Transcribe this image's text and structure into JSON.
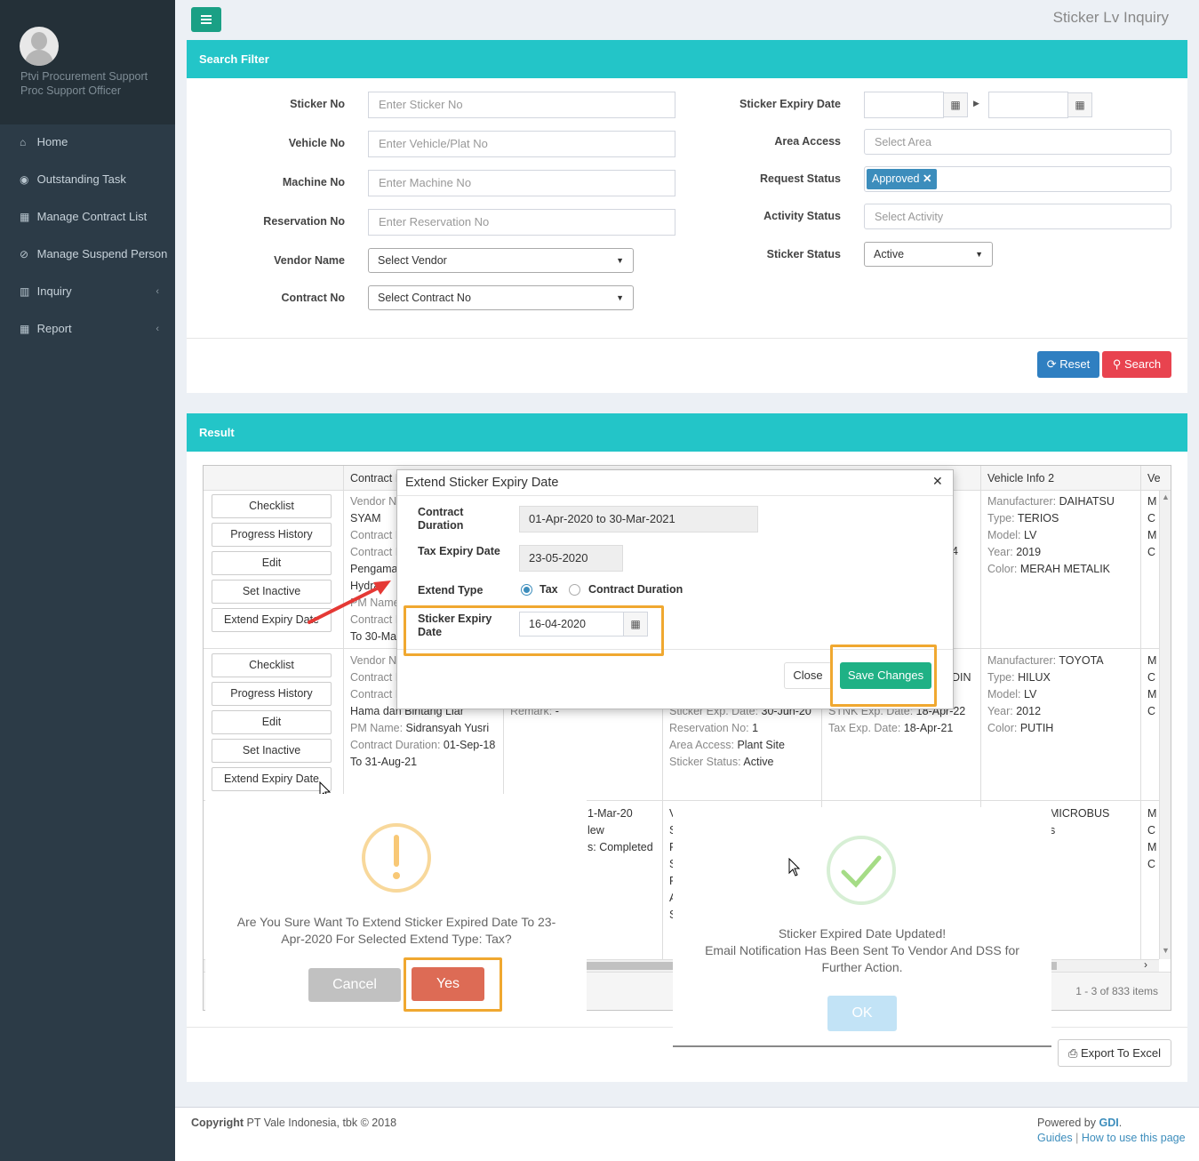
{
  "user": {
    "line1": "Ptvi Procurement Support",
    "line2": "Proc Support Officer"
  },
  "sidebar": {
    "items": [
      {
        "icon": "⌂",
        "label": "Home",
        "chev": ""
      },
      {
        "icon": "◉",
        "label": "Outstanding Task",
        "chev": ""
      },
      {
        "icon": "▦",
        "label": "Manage Contract List",
        "chev": ""
      },
      {
        "icon": "⊘",
        "label": "Manage Suspend Person",
        "chev": ""
      },
      {
        "icon": "▥",
        "label": "Inquiry",
        "chev": "‹"
      },
      {
        "icon": "▦",
        "label": "Report",
        "chev": "‹"
      }
    ]
  },
  "header": {
    "title": "Sticker Lv Inquiry"
  },
  "filter": {
    "title": "Search Filter",
    "sticker_no": {
      "label": "Sticker No",
      "placeholder": "Enter Sticker No"
    },
    "vehicle_no": {
      "label": "Vehicle No",
      "placeholder": "Enter Vehicle/Plat No"
    },
    "machine_no": {
      "label": "Machine No",
      "placeholder": "Enter Machine No"
    },
    "reservation_no": {
      "label": "Reservation No",
      "placeholder": "Enter Reservation No"
    },
    "vendor_name": {
      "label": "Vendor Name",
      "value": "Select Vendor"
    },
    "contract_no": {
      "label": "Contract No",
      "value": "Select Contract No"
    },
    "sticker_expiry": {
      "label": "Sticker Expiry Date"
    },
    "area_access": {
      "label": "Area Access",
      "placeholder": "Select Area"
    },
    "request_status": {
      "label": "Request Status",
      "tag": "Approved"
    },
    "activity_status": {
      "label": "Activity Status",
      "placeholder": "Select Activity"
    },
    "sticker_status": {
      "label": "Sticker Status",
      "value": "Active"
    },
    "reset_label": "Reset",
    "search_label": "Search"
  },
  "result": {
    "title": "Result",
    "columns": [
      "Contract I",
      "Vehicle Info 2",
      "Ve"
    ],
    "row_buttons": [
      "Checklist",
      "Progress History",
      "Edit",
      "Set Inactive",
      "Extend Expiry Date"
    ],
    "row1": {
      "c1": [
        "Vendor N",
        "SYAM",
        "Contract I",
        "Contract I",
        "Pengama",
        "Hydra",
        "PM Name",
        "Contract I",
        "To 30-Ma"
      ],
      "c4frag": "4",
      "veh2": [
        {
          "k": "Manufacturer:",
          "v": "DAIHATSU"
        },
        {
          "k": "Type:",
          "v": "TERIOS"
        },
        {
          "k": "Model:",
          "v": "LV"
        },
        {
          "k": "Year:",
          "v": "2019"
        },
        {
          "k": "Color:",
          "v": "MERAH METALIK"
        }
      ],
      "c6": [
        "M",
        "C",
        "M",
        "C"
      ]
    },
    "row2": {
      "c1a": [
        "Vendor N",
        "Contract I",
        "Contract I"
      ],
      "c1b": [
        {
          "k": "",
          "v": "Hama dan Bintang Liar"
        },
        {
          "k": "PM Name:",
          "v": "Sidransyah Yusri"
        },
        {
          "k": "Contract Duration:",
          "v": "01-Sep-18"
        },
        {
          "k": "",
          "v": "To 31-Aug-21"
        }
      ],
      "c2": {
        "k": "Remark:",
        "v": "-"
      },
      "c3": [
        {
          "k": "Sticker Exp. Date:",
          "v": "30-Jun-20"
        },
        {
          "k": "Reservation No:",
          "v": "1"
        },
        {
          "k": "Area Access:",
          "v": "Plant Site"
        },
        {
          "k": "Sticker Status:",
          "v": "Active"
        }
      ],
      "c4": [
        {
          "k": "",
          "v": "DIN"
        },
        {
          "k": "STNK Exp. Date:",
          "v": "18-Apr-22"
        },
        {
          "k": "Tax Exp. Date:",
          "v": "18-Apr-21"
        }
      ],
      "veh2": [
        {
          "k": "Manufacturer:",
          "v": "TOYOTA"
        },
        {
          "k": "Type:",
          "v": "HILUX"
        },
        {
          "k": "Model:",
          "v": "LV"
        },
        {
          "k": "Year:",
          "v": "2012"
        },
        {
          "k": "Color:",
          "v": "PUTIH"
        }
      ],
      "c6": [
        "M",
        "C",
        "M",
        "C"
      ]
    },
    "row3": {
      "c2": [
        "1-Mar-20",
        "lew",
        "s: Completed"
      ],
      "c3": [
        "V",
        "S",
        "F",
        "S",
        "F",
        "A",
        "S"
      ],
      "veh2": [
        ":  MICROBUS",
        "",
        "us"
      ],
      "c6": [
        "M",
        "C",
        "M",
        "C"
      ]
    },
    "pager": "1 - 3 of 833 items",
    "export_label": "Export To Excel"
  },
  "modal": {
    "title": "Extend Sticker Expiry Date",
    "contract_duration_label": "Contract Duration",
    "contract_duration": "01-Apr-2020 to 30-Mar-2021",
    "tax_expiry_label": "Tax Expiry Date",
    "tax_expiry": "23-05-2020",
    "extend_type_label": "Extend Type",
    "opt_tax": "Tax",
    "opt_contract": "Contract Duration",
    "sticker_expiry_label": "Sticker Expiry Date",
    "sticker_expiry": "16-04-2020",
    "close_label": "Close",
    "save_label": "Save Changes"
  },
  "confirm": {
    "message": "Are You Sure Want To Extend Sticker Expired Date To 23-Apr-2020 For Selected Extend Type: Tax?",
    "cancel_label": "Cancel",
    "yes_label": "Yes"
  },
  "success": {
    "line1": "Sticker Expired Date Updated!",
    "line2": "Email Notification Has Been Sent To Vendor And DSS for Further Action.",
    "ok_label": "OK"
  },
  "footer": {
    "copyright_bold": "Copyright",
    "copyright_rest": "PT Vale Indonesia, tbk © 2018",
    "powered_by": "Powered by",
    "gdi": "GDI",
    "guides": "Guides",
    "how_to": "How to use this page"
  },
  "colors": {
    "teal": "#23c5c8",
    "sidebar": "#2c3b47",
    "blue": "#2f7fc1",
    "red": "#e8434f",
    "green": "#1fb185",
    "orange": "#f0a830"
  }
}
